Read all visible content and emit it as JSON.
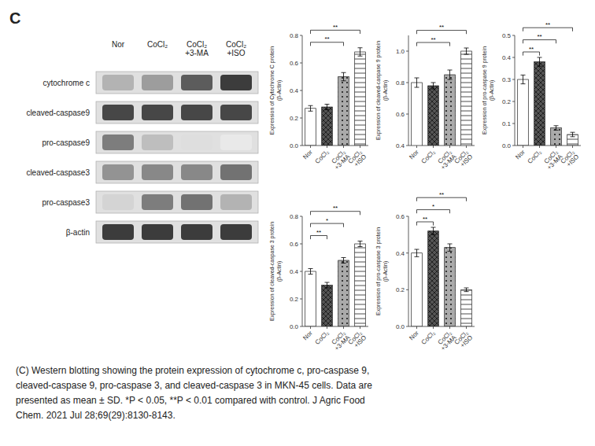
{
  "panel_label": "C",
  "caption": "(C) Western blotting showing the protein expression of cytochrome c, pro-caspase 9,\ncleaved-caspase 9, pro-caspase 3, and cleaved-caspase 3 in MKN-45 cells. Data are\npresented as mean ± SD. *P < 0.05, **P < 0.01 compared with control. J Agric Food\nChem. 2021 Jul 28;69(29):8130-8143.",
  "chart_data": [
    {
      "type": "blot",
      "categories": [
        "Nor",
        "CoCl₂",
        "CoCl₂\n+3-MA",
        "CoCl₂\n+ISO"
      ],
      "rows": [
        "cytochrome c",
        "cleaved-caspase9",
        "pro-caspase9",
        "cleaved-caspase3",
        "pro-caspase3",
        "β-actin"
      ],
      "cells": [
        [
          0.35,
          0.45,
          0.75,
          0.9
        ],
        [
          0.85,
          0.85,
          0.85,
          0.85
        ],
        [
          0.6,
          0.3,
          0.15,
          0.1
        ],
        [
          0.5,
          0.55,
          0.55,
          0.65
        ],
        [
          0.2,
          0.6,
          0.65,
          0.35
        ],
        [
          0.9,
          0.9,
          0.9,
          0.9
        ]
      ]
    },
    {
      "type": "bar",
      "y_label": "Expression of Cytochrome C protein\n(β-Actin)",
      "categories": [
        "Nor",
        "CoCl₂",
        "CoCl₂+3-MA",
        "CoCl₂+ISO"
      ],
      "values": [
        0.27,
        0.28,
        0.5,
        0.68
      ],
      "errors": [
        0.02,
        0.02,
        0.03,
        0.03
      ],
      "colors": [
        "#ffffff",
        "#555555",
        "#aaaaaa",
        "#ffffff"
      ],
      "ylim": [
        0,
        0.8
      ],
      "yticks": [
        {
          "value": 0,
          "label": "0.0"
        },
        0.2,
        0.4,
        0.6,
        0.8
      ],
      "grid": false,
      "annotations": [
        {
          "pair": [
            0,
            2
          ],
          "label": "**"
        },
        {
          "pair": [
            0,
            3
          ],
          "label": "**"
        }
      ]
    },
    {
      "type": "bar",
      "y_label": "Expression of cleaved-caspase 9 protein\n(β-Actin)",
      "categories": [
        "Nor",
        "CoCl₂",
        "CoCl₂+3-MA",
        "CoCl₂+ISO"
      ],
      "values": [
        0.8,
        0.78,
        0.85,
        1.0
      ],
      "errors": [
        0.03,
        0.02,
        0.03,
        0.02
      ],
      "colors": [
        "#ffffff",
        "#555555",
        "#aaaaaa",
        "#ffffff"
      ],
      "ylim": [
        0.4,
        1.1
      ],
      "yticks": [
        0.4,
        0.6,
        0.8,
        {
          "value": 1,
          "label": "1.0"
        }
      ],
      "grid": false,
      "annotations": [
        {
          "pair": [
            0,
            2
          ],
          "label": "**"
        },
        {
          "pair": [
            0,
            3
          ],
          "label": "**"
        }
      ]
    },
    {
      "type": "bar",
      "y_label": "Expression of pro-caspase 9 protein\n(β-Actin)",
      "categories": [
        "Nor",
        "CoCl₂",
        "CoCl₂+3-MA",
        "CoCl₂+ISO"
      ],
      "values": [
        0.3,
        0.38,
        0.08,
        0.05
      ],
      "errors": [
        0.02,
        0.02,
        0.01,
        0.01
      ],
      "colors": [
        "#ffffff",
        "#555555",
        "#aaaaaa",
        "#ffffff"
      ],
      "ylim": [
        0,
        0.5
      ],
      "yticks": [
        {
          "value": 0,
          "label": "0.0"
        },
        0.1,
        0.2,
        0.3,
        0.4,
        0.5
      ],
      "grid": false,
      "annotations": [
        {
          "pair": [
            0,
            1
          ],
          "label": "**"
        },
        {
          "pair": [
            0,
            2
          ],
          "label": "**"
        },
        {
          "pair": [
            0,
            3
          ],
          "label": "**"
        }
      ]
    },
    {
      "type": "bar",
      "y_label": "Expression of cleaved-caspase 3 protein\n(β-Actin)",
      "categories": [
        "Nor",
        "CoCl₂",
        "CoCl₂+3-MA",
        "CoCl₂+ISO"
      ],
      "values": [
        0.4,
        0.3,
        0.48,
        0.6
      ],
      "errors": [
        0.02,
        0.02,
        0.02,
        0.02
      ],
      "colors": [
        "#ffffff",
        "#555555",
        "#aaaaaa",
        "#ffffff"
      ],
      "ylim": [
        0,
        0.8
      ],
      "yticks": [
        {
          "value": 0,
          "label": "0.0"
        },
        0.2,
        0.4,
        0.6,
        0.8
      ],
      "grid": false,
      "annotations": [
        {
          "pair": [
            0,
            1
          ],
          "label": "**"
        },
        {
          "pair": [
            0,
            2
          ],
          "label": "*"
        },
        {
          "pair": [
            0,
            3
          ],
          "label": "**"
        }
      ]
    },
    {
      "type": "bar",
      "y_label": "Expression of pro-caspase 3 protein\n(β-Actin)",
      "categories": [
        "Nor",
        "CoCl₂",
        "CoCl₂+3-MA",
        "CoCl₂+ISO"
      ],
      "values": [
        0.4,
        0.52,
        0.43,
        0.2
      ],
      "errors": [
        0.02,
        0.02,
        0.02,
        0.01
      ],
      "colors": [
        "#ffffff",
        "#555555",
        "#aaaaaa",
        "#ffffff"
      ],
      "ylim": [
        0,
        0.6
      ],
      "yticks": [
        {
          "value": 0,
          "label": "0.0"
        },
        0.2,
        0.4,
        0.6
      ],
      "grid": false,
      "annotations": [
        {
          "pair": [
            0,
            1
          ],
          "label": "**"
        },
        {
          "pair": [
            0,
            2
          ],
          "label": "*"
        },
        {
          "pair": [
            0,
            3
          ],
          "label": "**"
        }
      ]
    }
  ]
}
